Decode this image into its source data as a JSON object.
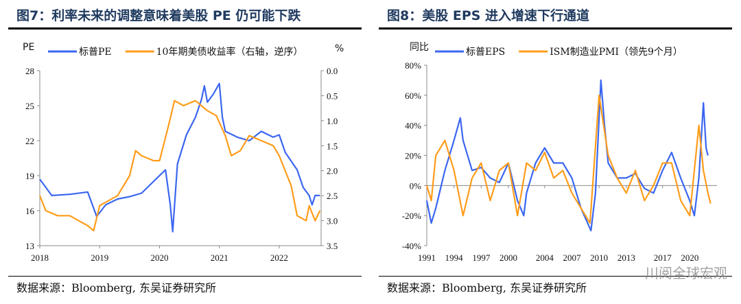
{
  "charts": [
    {
      "title": "图7：利率未来的调整意味着美股 PE 仍可能下跌",
      "source": "数据来源：Bloomberg, 东吴证券研究所"
    },
    {
      "title": "图8：美股 EPS 进入增速下行通道",
      "source": "数据来源：Bloomberg, 东吴证券研究所"
    }
  ],
  "watermark": "川阅全球宏观",
  "chart_data": [
    {
      "type": "line",
      "ylabel": "PE",
      "y2label": "%",
      "xlim": [
        2018,
        2022.7
      ],
      "ylim": [
        13,
        28
      ],
      "y2lim": [
        0,
        3.5
      ],
      "y2_reversed": true,
      "xticks": [
        "2018",
        "2019",
        "2020",
        "2021",
        "2022"
      ],
      "yticks": [
        "13",
        "16",
        "19",
        "22",
        "25",
        "28"
      ],
      "y2ticks": [
        "0.0",
        "0.5",
        "1.0",
        "1.5",
        "2.0",
        "2.5",
        "3.0",
        "3.5"
      ],
      "legend": "top",
      "series": [
        {
          "name": "标普PE",
          "axis": "left",
          "color": "#3a66f0",
          "points": [
            [
              2018,
              18.7
            ],
            [
              2018.1,
              18
            ],
            [
              2018.2,
              17.3
            ],
            [
              2018.5,
              17.4
            ],
            [
              2018.8,
              17.6
            ],
            [
              2018.95,
              15.5
            ],
            [
              2019.1,
              16.5
            ],
            [
              2019.3,
              17
            ],
            [
              2019.5,
              17.2
            ],
            [
              2019.7,
              17.5
            ],
            [
              2019.9,
              18.5
            ],
            [
              2020.1,
              19.5
            ],
            [
              2020.18,
              16.5
            ],
            [
              2020.22,
              14.2
            ],
            [
              2020.3,
              20
            ],
            [
              2020.45,
              22.5
            ],
            [
              2020.6,
              24
            ],
            [
              2020.7,
              25.5
            ],
            [
              2020.75,
              26.7
            ],
            [
              2020.8,
              25.3
            ],
            [
              2020.9,
              26
            ],
            [
              2021,
              26.9
            ],
            [
              2021.05,
              24
            ],
            [
              2021.1,
              22.8
            ],
            [
              2021.3,
              22.3
            ],
            [
              2021.5,
              22
            ],
            [
              2021.7,
              22.8
            ],
            [
              2021.9,
              22.3
            ],
            [
              2022,
              22.5
            ],
            [
              2022.1,
              21
            ],
            [
              2022.3,
              19.5
            ],
            [
              2022.4,
              18
            ],
            [
              2022.5,
              17.3
            ],
            [
              2022.55,
              16.5
            ],
            [
              2022.6,
              17.3
            ],
            [
              2022.68,
              17.3
            ]
          ]
        },
        {
          "name": "10年期美债收益率（右轴，逆序）",
          "axis": "right",
          "color": "#ff9c1a",
          "points": [
            [
              2018,
              2.5
            ],
            [
              2018.1,
              2.8
            ],
            [
              2018.3,
              2.9
            ],
            [
              2018.5,
              2.9
            ],
            [
              2018.8,
              3.1
            ],
            [
              2018.9,
              3.2
            ],
            [
              2019,
              2.7
            ],
            [
              2019.3,
              2.5
            ],
            [
              2019.5,
              2.1
            ],
            [
              2019.6,
              1.6
            ],
            [
              2019.7,
              1.7
            ],
            [
              2019.9,
              1.8
            ],
            [
              2020,
              1.8
            ],
            [
              2020.15,
              1.1
            ],
            [
              2020.25,
              0.6
            ],
            [
              2020.4,
              0.7
            ],
            [
              2020.6,
              0.6
            ],
            [
              2020.8,
              0.8
            ],
            [
              2020.95,
              0.9
            ],
            [
              2021.1,
              1.3
            ],
            [
              2021.2,
              1.7
            ],
            [
              2021.35,
              1.6
            ],
            [
              2021.5,
              1.3
            ],
            [
              2021.7,
              1.4
            ],
            [
              2021.9,
              1.5
            ],
            [
              2022,
              1.7
            ],
            [
              2022.2,
              2.3
            ],
            [
              2022.3,
              2.9
            ],
            [
              2022.45,
              3
            ],
            [
              2022.5,
              2.7
            ],
            [
              2022.6,
              3
            ],
            [
              2022.68,
              2.8
            ]
          ]
        }
      ]
    },
    {
      "type": "line",
      "ylabel": "同比",
      "xlim": [
        1991,
        2023
      ],
      "ylim": [
        -40,
        80
      ],
      "xticks": [
        "1991",
        "1994",
        "1997",
        "2000",
        "2004",
        "2007",
        "2010",
        "2013",
        "2017",
        "2020"
      ],
      "yticks": [
        "-40%",
        "-20%",
        "0%",
        "20%",
        "40%",
        "60%",
        "80%"
      ],
      "legend": "top",
      "series": [
        {
          "name": "标普EPS",
          "color": "#3a66f0",
          "points": [
            [
              1991,
              -10
            ],
            [
              1991.5,
              -25
            ],
            [
              1992,
              -15
            ],
            [
              1993,
              10
            ],
            [
              1994,
              30
            ],
            [
              1994.7,
              45
            ],
            [
              1995,
              30
            ],
            [
              1996,
              10
            ],
            [
              1997,
              12
            ],
            [
              1998,
              5
            ],
            [
              1999,
              2
            ],
            [
              2000,
              15
            ],
            [
              2001,
              -10
            ],
            [
              2001.7,
              -20
            ],
            [
              2002,
              -5
            ],
            [
              2003,
              15
            ],
            [
              2004,
              25
            ],
            [
              2005,
              15
            ],
            [
              2006,
              15
            ],
            [
              2007,
              5
            ],
            [
              2008,
              -15
            ],
            [
              2009.1,
              -30
            ],
            [
              2009.6,
              -5
            ],
            [
              2010.2,
              70
            ],
            [
              2010.6,
              40
            ],
            [
              2011,
              15
            ],
            [
              2012,
              5
            ],
            [
              2013,
              5
            ],
            [
              2014,
              8
            ],
            [
              2015,
              -2
            ],
            [
              2016,
              -5
            ],
            [
              2017,
              10
            ],
            [
              2018,
              22
            ],
            [
              2019,
              5
            ],
            [
              2020,
              -10
            ],
            [
              2020.5,
              -20
            ],
            [
              2021,
              5
            ],
            [
              2021.5,
              55
            ],
            [
              2021.8,
              25
            ],
            [
              2022,
              20
            ]
          ]
        },
        {
          "name": "ISM制造业PMI（领先9个月）",
          "color": "#ff9c1a",
          "points": [
            [
              1991,
              0
            ],
            [
              1991.5,
              -10
            ],
            [
              1992,
              20
            ],
            [
              1993,
              30
            ],
            [
              1994,
              10
            ],
            [
              1995,
              -20
            ],
            [
              1996,
              5
            ],
            [
              1997,
              15
            ],
            [
              1998,
              -10
            ],
            [
              1999,
              10
            ],
            [
              2000,
              15
            ],
            [
              2001,
              -20
            ],
            [
              2002,
              15
            ],
            [
              2003,
              10
            ],
            [
              2004,
              22
            ],
            [
              2005,
              5
            ],
            [
              2006,
              10
            ],
            [
              2007,
              -5
            ],
            [
              2008,
              -15
            ],
            [
              2009,
              -25
            ],
            [
              2010,
              60
            ],
            [
              2011,
              20
            ],
            [
              2012,
              5
            ],
            [
              2013,
              -5
            ],
            [
              2014,
              10
            ],
            [
              2015,
              -10
            ],
            [
              2016,
              0
            ],
            [
              2017,
              15
            ],
            [
              2018,
              15
            ],
            [
              2019,
              -10
            ],
            [
              2020,
              -20
            ],
            [
              2021,
              40
            ],
            [
              2021.5,
              10
            ],
            [
              2022,
              -5
            ],
            [
              2022.3,
              -12
            ]
          ]
        }
      ]
    }
  ]
}
